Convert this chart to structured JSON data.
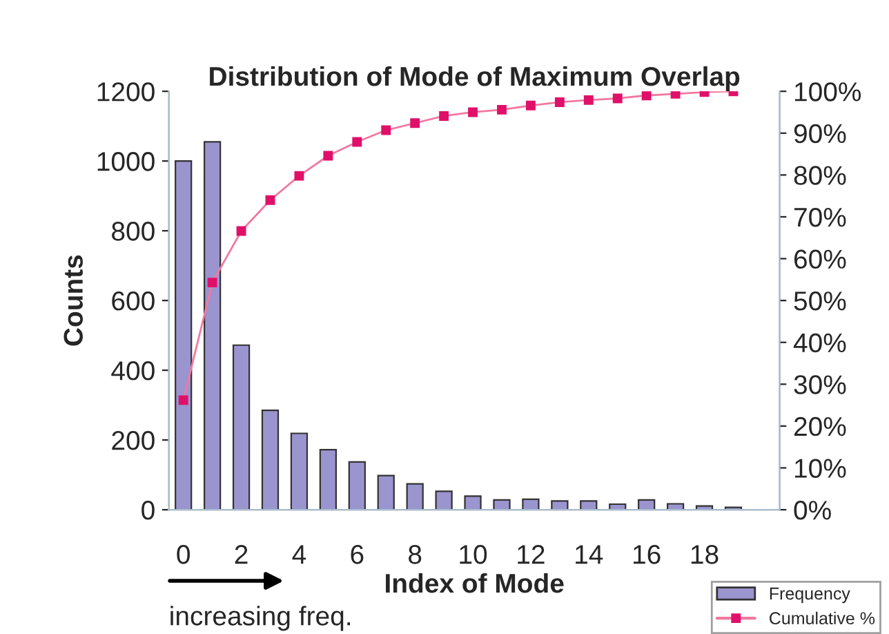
{
  "chart_data": {
    "type": "bar",
    "title": "Distribution of Mode of Maximum Overlap",
    "xlabel": "Index of Mode",
    "ylabel": "Counts",
    "categories": [
      "0",
      null,
      "2",
      null,
      "4",
      null,
      "6",
      null,
      "8",
      null,
      "10",
      null,
      "12",
      null,
      "14",
      null,
      "16",
      null,
      "18",
      null
    ],
    "series": [
      {
        "name": "Frequency",
        "color": "#9a94cf",
        "values": [
          1000,
          1055,
          472,
          285,
          219,
          172,
          137,
          98,
          74,
          53,
          39,
          28,
          30,
          25,
          25,
          16,
          28,
          17,
          11,
          7
        ]
      },
      {
        "name": "Cumulative %",
        "type": "line",
        "axis": "y2",
        "color": "#e0106a",
        "marker": "square",
        "line_style": "solid",
        "values": [
          26.2,
          54.3,
          66.6,
          74.0,
          79.8,
          84.6,
          87.9,
          90.7,
          92.4,
          94.1,
          95.0,
          95.6,
          96.6,
          97.4,
          97.9,
          98.3,
          99.0,
          99.4,
          99.8,
          100
        ]
      }
    ],
    "ylim": [
      0,
      1200
    ],
    "yticks": [
      0,
      200,
      400,
      600,
      800,
      1000,
      1200
    ],
    "y2lim": [
      0,
      100
    ],
    "y2ticks": [
      {
        "value": 0,
        "label": "0%"
      },
      {
        "value": 10,
        "label": "10%"
      },
      {
        "value": 20,
        "label": "20%"
      },
      {
        "value": 30,
        "label": "30%"
      },
      {
        "value": 40,
        "label": "40%"
      },
      {
        "value": 50,
        "label": "50%"
      },
      {
        "value": 60,
        "label": "60%"
      },
      {
        "value": 70,
        "label": "70%"
      },
      {
        "value": 80,
        "label": "80%"
      },
      {
        "value": 90,
        "label": "90%"
      },
      {
        "value": 100,
        "label": "100%"
      }
    ],
    "annotations": [
      "increasing freq."
    ],
    "grid": false,
    "legend": "bottom right"
  }
}
